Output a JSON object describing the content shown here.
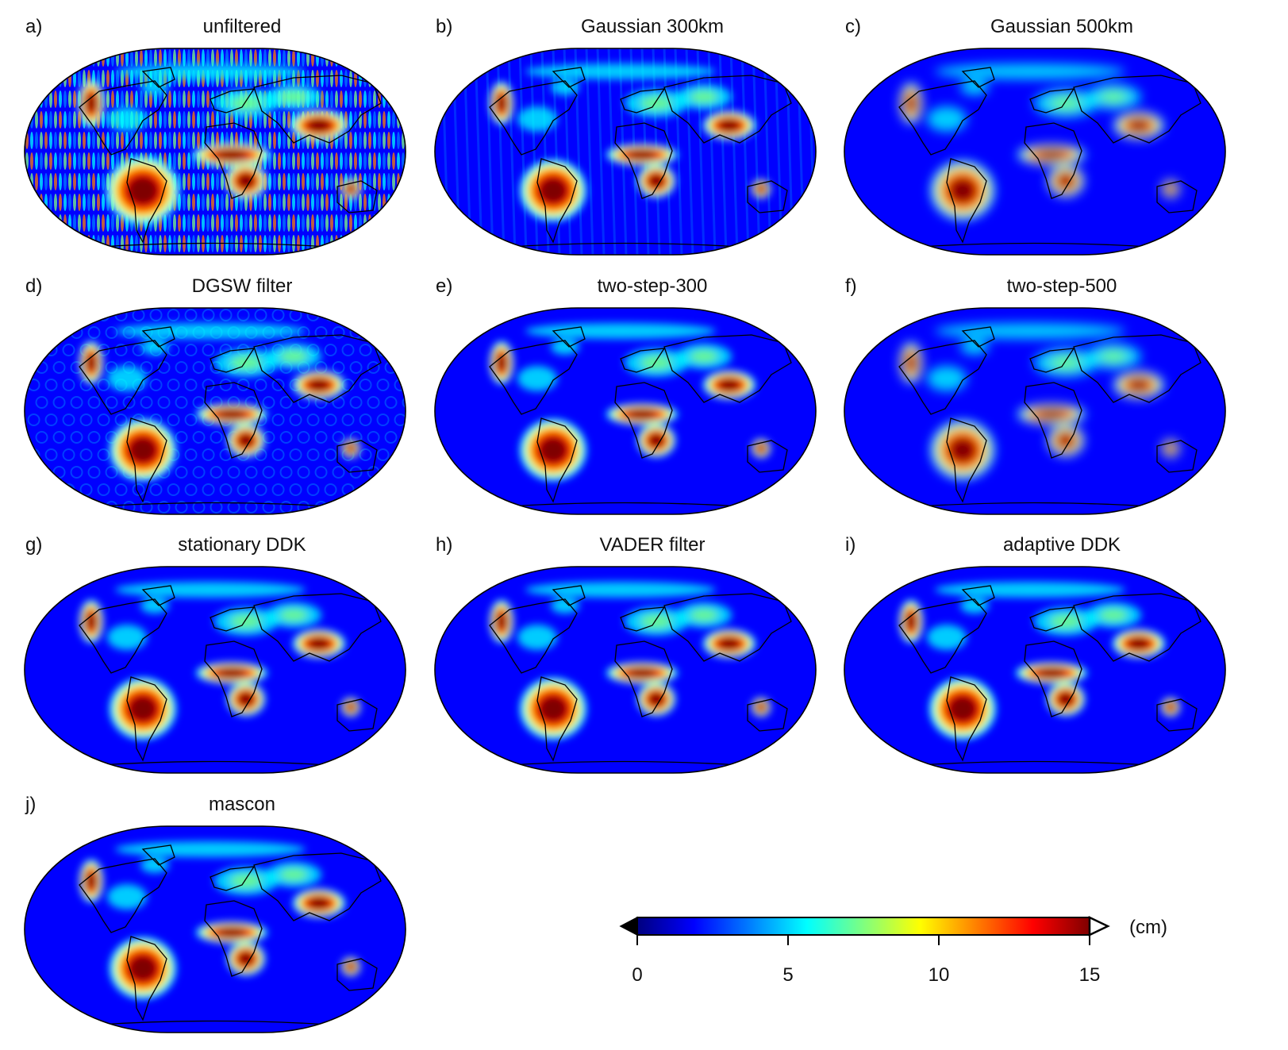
{
  "figure": {
    "panels": [
      {
        "letter": "a)",
        "title": "unfiltered",
        "style": "noisy"
      },
      {
        "letter": "b)",
        "title": "Gaussian 300km",
        "style": "stripes"
      },
      {
        "letter": "c)",
        "title": "Gaussian 500km",
        "style": "smooth"
      },
      {
        "letter": "d)",
        "title": "DGSW filter",
        "style": "bubbly"
      },
      {
        "letter": "e)",
        "title": "two-step-300",
        "style": "clean"
      },
      {
        "letter": "f)",
        "title": "two-step-500",
        "style": "smooth"
      },
      {
        "letter": "g)",
        "title": "stationary DDK",
        "style": "clean"
      },
      {
        "letter": "h)",
        "title": "VADER filter",
        "style": "clean"
      },
      {
        "letter": "i)",
        "title": "adaptive DDK",
        "style": "clean"
      },
      {
        "letter": "j)",
        "title": "mascon",
        "style": "clean"
      }
    ],
    "colorbar": {
      "min": 0,
      "max": 15,
      "ticks": [
        "0",
        "5",
        "10",
        "15"
      ],
      "unit": "(cm)",
      "colormap": "jet",
      "extend": "both",
      "colors": [
        "#00007f",
        "#0000ff",
        "#007fff",
        "#00ffff",
        "#7fff7f",
        "#ffff00",
        "#ff7f00",
        "#ff0000",
        "#7f0000"
      ]
    }
  }
}
